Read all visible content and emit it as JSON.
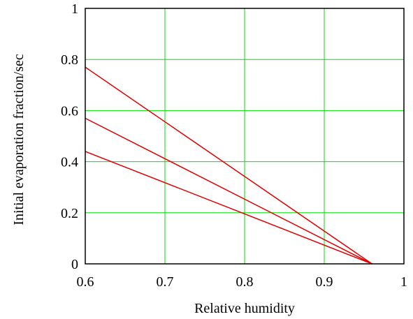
{
  "chart_data": {
    "type": "line",
    "title": "",
    "xlabel": "Relative humidity",
    "ylabel": "Initial evaporation fraction/sec",
    "xlim": [
      0.6,
      1.0
    ],
    "ylim": [
      0,
      1.0
    ],
    "grid": true,
    "x_ticks": [
      "0.6",
      "0.7",
      "0.8",
      "0.9",
      "1"
    ],
    "y_ticks": [
      "0",
      "0.2",
      "0.4",
      "0.6",
      "0.8",
      "1"
    ],
    "x_tick_values": [
      0.6,
      0.7,
      0.8,
      0.9,
      1.0
    ],
    "y_tick_values": [
      0,
      0.2,
      0.4,
      0.6,
      0.8,
      1.0
    ],
    "grid_color": "#00e000",
    "series_color": "#e00000",
    "series": [
      {
        "x": [
          0.6,
          0.96
        ],
        "y": [
          0.77,
          0
        ]
      },
      {
        "x": [
          0.6,
          0.96
        ],
        "y": [
          0.57,
          0
        ]
      },
      {
        "x": [
          0.6,
          0.96
        ],
        "y": [
          0.44,
          0
        ]
      }
    ]
  }
}
